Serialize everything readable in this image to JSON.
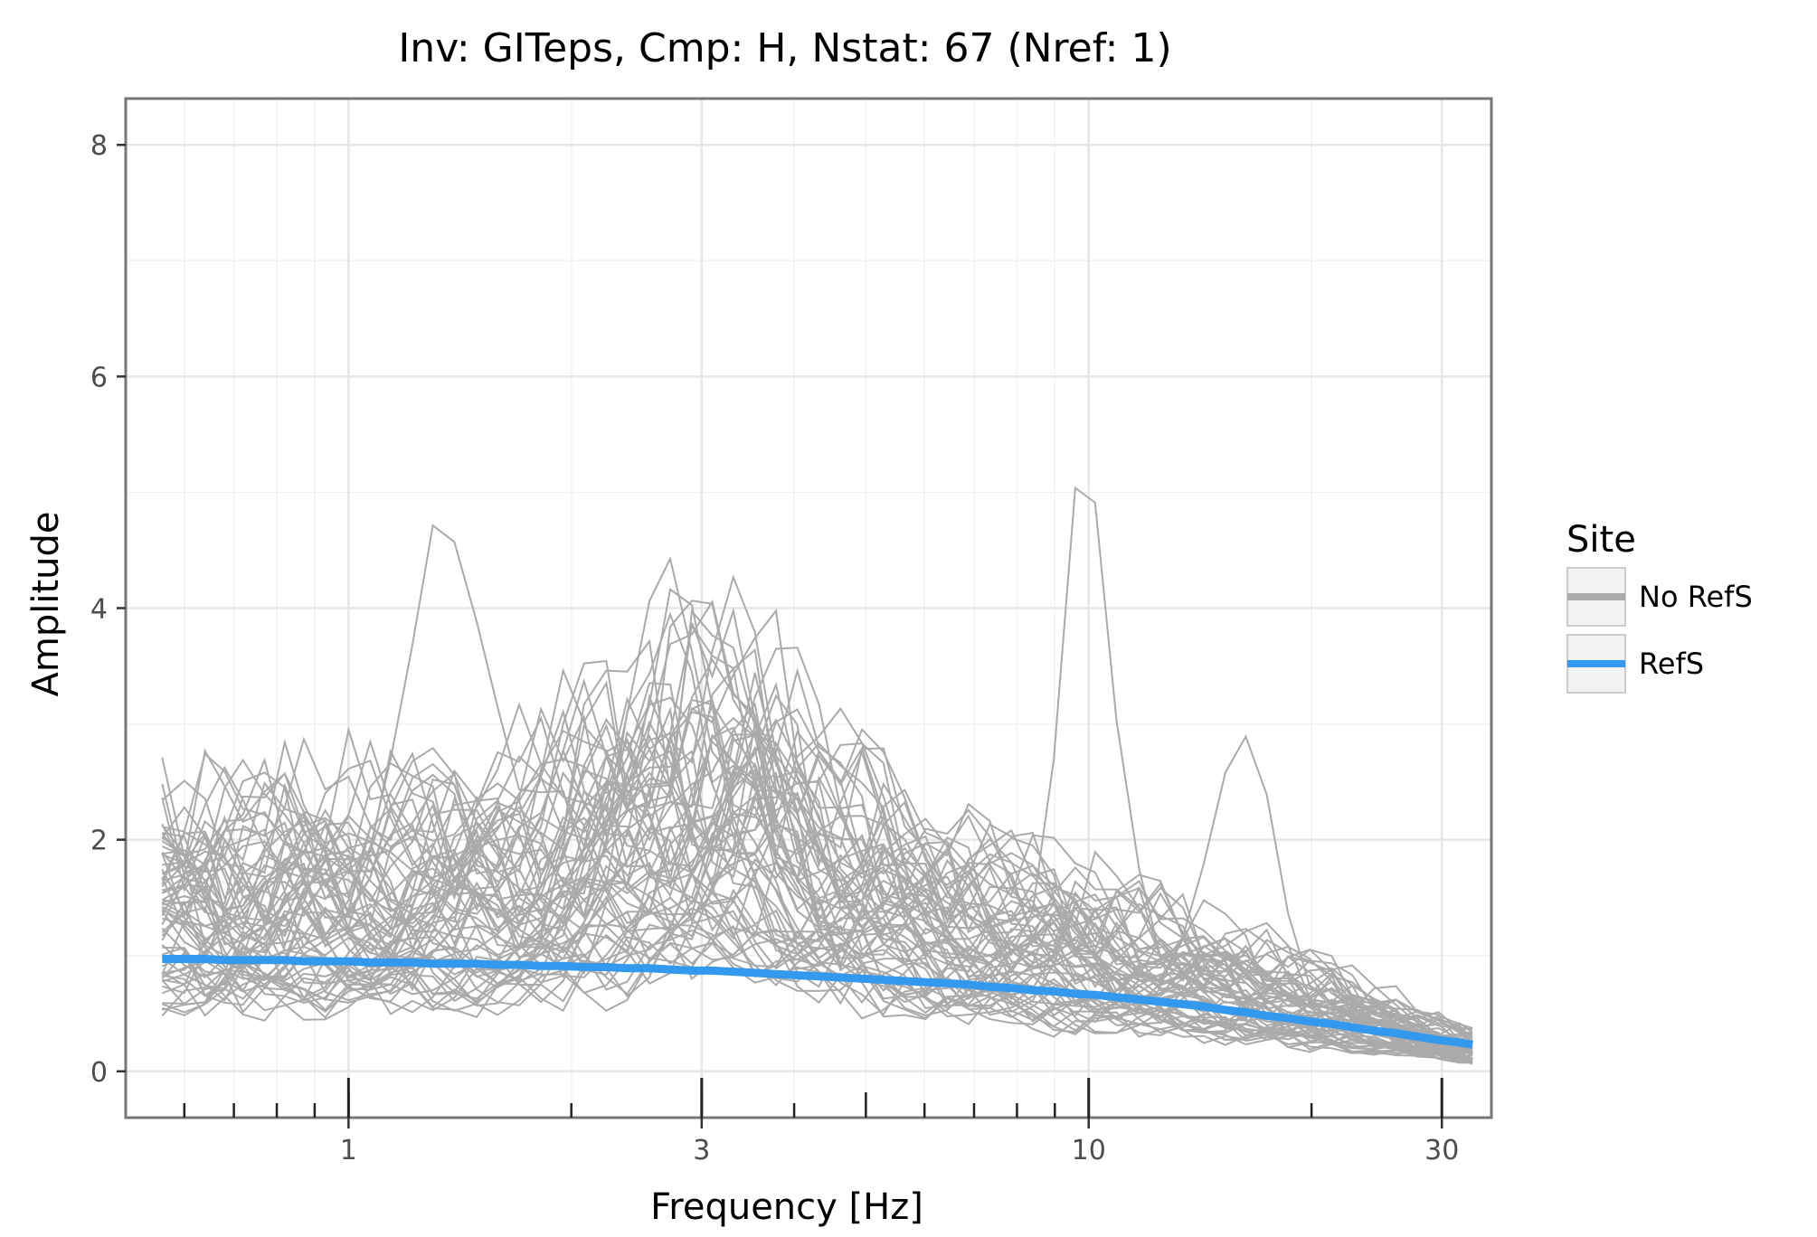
{
  "chart_data": {
    "type": "line",
    "title": "Inv: GITeps, Cmp: H, Nstat: 67 (Nref: 1)",
    "xlabel": "Frequency [Hz]",
    "ylabel": "Amplitude",
    "xscale": "log",
    "xlim": [
      0.5,
      35
    ],
    "ylim": [
      -0.4,
      8.4
    ],
    "xticks": [
      1,
      3,
      10,
      30
    ],
    "xtick_labels": [
      "1",
      "3",
      "10",
      "30"
    ],
    "yticks": [
      0,
      2,
      4,
      6,
      8
    ],
    "ytick_labels": [
      "0",
      "2",
      "4",
      "6",
      "8"
    ],
    "grid": true,
    "legend": {
      "title": "Site",
      "placement": "right",
      "entries": [
        {
          "label": "No RefS",
          "color": "#aaaaaa"
        },
        {
          "label": "RefS",
          "color": "#3399ee"
        }
      ]
    },
    "x": [
      0.56,
      0.6,
      0.64,
      0.68,
      0.72,
      0.77,
      0.82,
      0.87,
      0.93,
      1.0,
      1.07,
      1.14,
      1.22,
      1.3,
      1.39,
      1.49,
      1.59,
      1.7,
      1.82,
      1.95,
      2.08,
      2.23,
      2.38,
      2.55,
      2.72,
      2.91,
      3.1,
      3.31,
      3.54,
      3.78,
      4.04,
      4.32,
      4.62,
      4.94,
      5.28,
      5.64,
      6.02,
      6.44,
      6.88,
      7.35,
      7.86,
      8.4,
      8.97,
      9.59,
      10.2,
      10.9,
      11.7,
      12.5,
      13.4,
      14.3,
      15.3,
      16.3,
      17.4,
      18.6,
      19.9,
      21.3,
      22.7,
      24.3,
      26.0,
      27.8,
      29.7,
      31.7,
      33.0
    ],
    "series": [
      {
        "name": "RefS",
        "color": "#3399ee",
        "values": [
          0.97,
          0.97,
          0.97,
          0.96,
          0.96,
          0.96,
          0.96,
          0.95,
          0.95,
          0.95,
          0.94,
          0.94,
          0.94,
          0.93,
          0.93,
          0.93,
          0.92,
          0.92,
          0.91,
          0.91,
          0.9,
          0.9,
          0.89,
          0.89,
          0.88,
          0.87,
          0.87,
          0.86,
          0.85,
          0.84,
          0.83,
          0.82,
          0.81,
          0.8,
          0.79,
          0.78,
          0.77,
          0.76,
          0.75,
          0.73,
          0.72,
          0.7,
          0.69,
          0.67,
          0.66,
          0.64,
          0.62,
          0.6,
          0.58,
          0.56,
          0.53,
          0.51,
          0.48,
          0.46,
          0.43,
          0.41,
          0.38,
          0.35,
          0.33,
          0.3,
          0.27,
          0.25,
          0.23
        ]
      }
    ]
  }
}
